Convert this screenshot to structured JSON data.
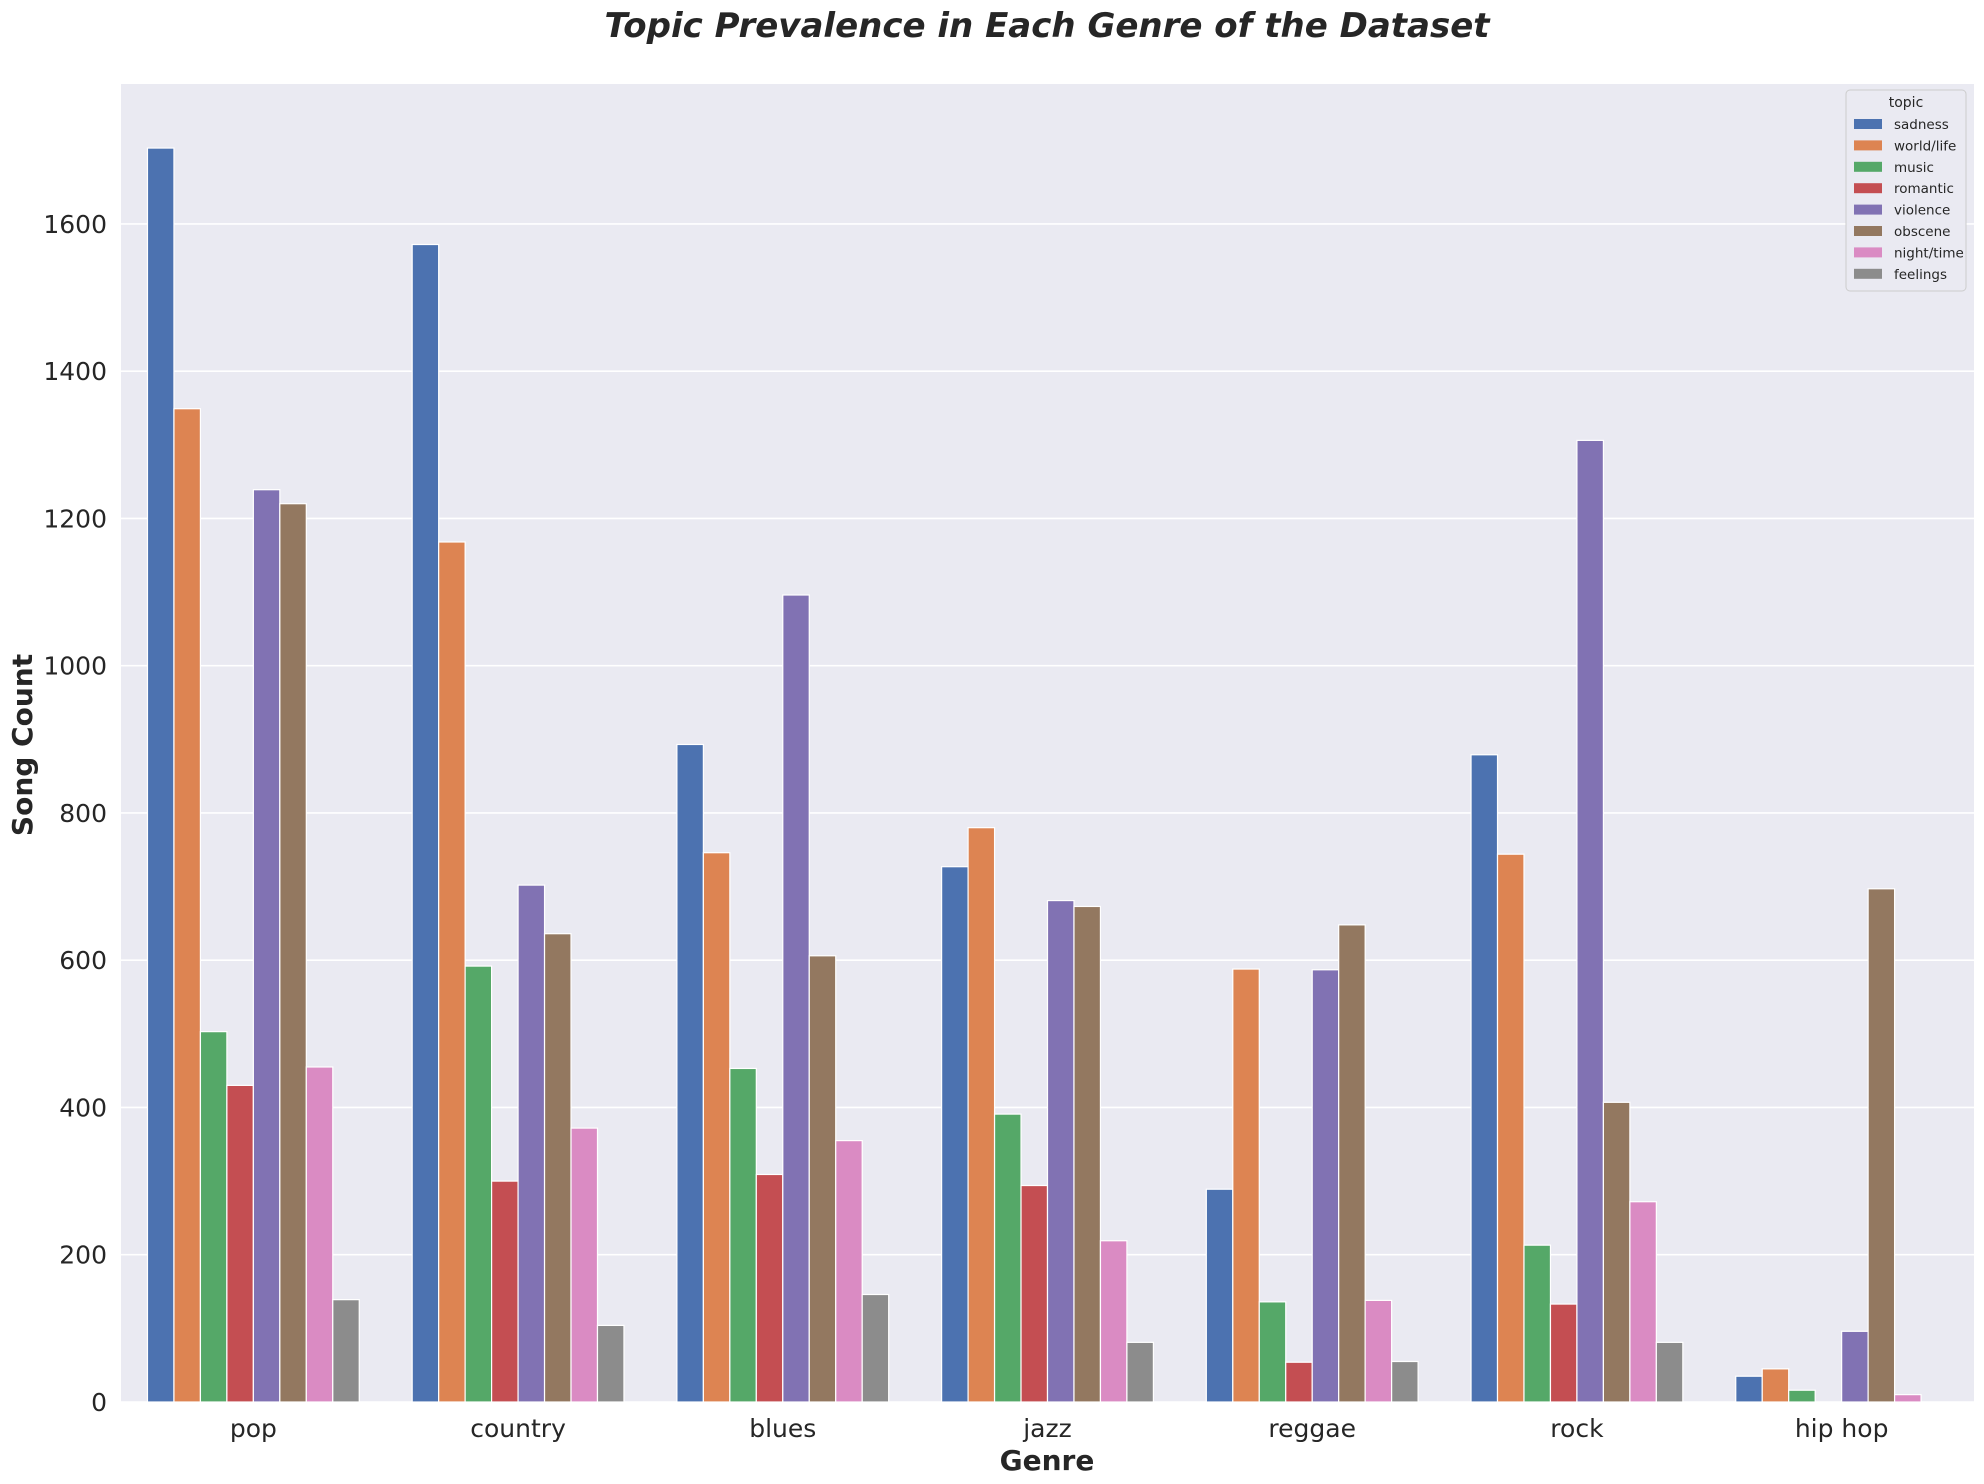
{
  "chart_data": {
    "type": "bar",
    "title": "Topic Prevalence in Each Genre of the Dataset",
    "xlabel": "Genre",
    "ylabel": "Song Count",
    "ylim": [
      0,
      1790
    ],
    "yticks": [
      0,
      200,
      400,
      600,
      800,
      1000,
      1200,
      1400,
      1600
    ],
    "grid": true,
    "legend_title": "topic",
    "legend_position": "top-right",
    "categories": [
      "pop",
      "country",
      "blues",
      "jazz",
      "reggae",
      "rock",
      "hip hop"
    ],
    "series": [
      {
        "name": "sadness",
        "color": "#4c72b0",
        "values": [
          1703,
          1572,
          893,
          727,
          289,
          879,
          35
        ]
      },
      {
        "name": "world/life",
        "color": "#dd8452",
        "values": [
          1349,
          1168,
          746,
          780,
          588,
          744,
          45
        ]
      },
      {
        "name": "music",
        "color": "#55a868",
        "values": [
          503,
          592,
          453,
          391,
          136,
          213,
          16
        ]
      },
      {
        "name": "romantic",
        "color": "#c44e52",
        "values": [
          430,
          300,
          309,
          294,
          54,
          133,
          0
        ]
      },
      {
        "name": "violence",
        "color": "#8172b3",
        "values": [
          1239,
          702,
          1096,
          681,
          587,
          1306,
          96
        ]
      },
      {
        "name": "obscene",
        "color": "#937860",
        "values": [
          1220,
          636,
          606,
          673,
          648,
          407,
          697
        ]
      },
      {
        "name": "night/time",
        "color": "#da8bc3",
        "values": [
          455,
          372,
          355,
          219,
          138,
          272,
          10
        ]
      },
      {
        "name": "feelings",
        "color": "#8c8c8c",
        "values": [
          139,
          104,
          146,
          81,
          55,
          81,
          0
        ]
      }
    ]
  },
  "colors": {
    "plot_background": "#eaeaf2",
    "grid": "#ffffff",
    "text": "#262626"
  }
}
